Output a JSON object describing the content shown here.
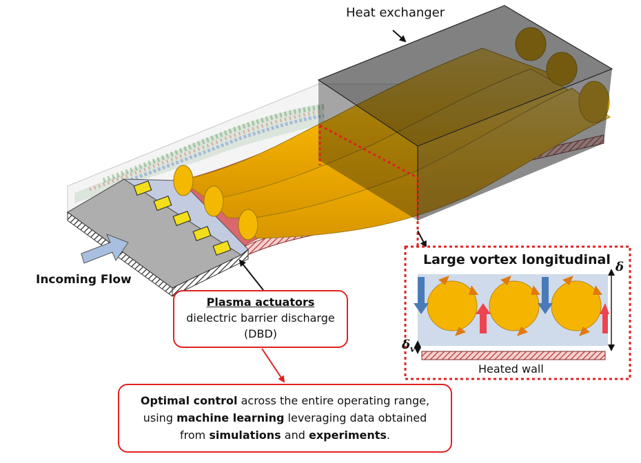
{
  "labels": {
    "heat_exchanger": "Heat exchanger",
    "incoming_flow": "Incoming Flow",
    "plasma_title": "Plasma actuators",
    "plasma_line2": "dielectric barrier discharge",
    "plasma_line3": "(DBD)",
    "inset_title": "Large vortex longitudinal",
    "delta": "δ",
    "delta_v": "δ",
    "delta_v_sub": "v",
    "heated_wall": "Heated wall"
  },
  "optimal_box": {
    "bold1": "Optimal control",
    "text1": " across the entire operating range,",
    "text2": "using ",
    "bold2": "machine learning",
    "text3": " leveraging data obtained",
    "text4": "from ",
    "bold3": "simulations",
    "text5": " and ",
    "bold4": "experiments",
    "text6": "."
  },
  "colors": {
    "vortex": "#f6b400",
    "wall": "#d9676b",
    "actuator": "#f2de1a",
    "arrow_red": "#e02020",
    "flow_arrow": "#a9bfe0"
  }
}
